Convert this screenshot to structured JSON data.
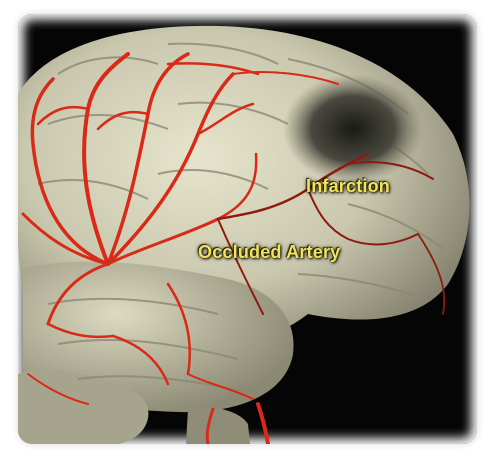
{
  "image": {
    "labels": {
      "infarction": "Infarction",
      "occluded_artery": "Occluded Artery"
    },
    "colors": {
      "background": "#050505",
      "brain_tissue": "#c9c7ad",
      "brain_shadow": "#6e6c5c",
      "artery": "#d92a17",
      "label_text": "#f2e35a"
    }
  }
}
